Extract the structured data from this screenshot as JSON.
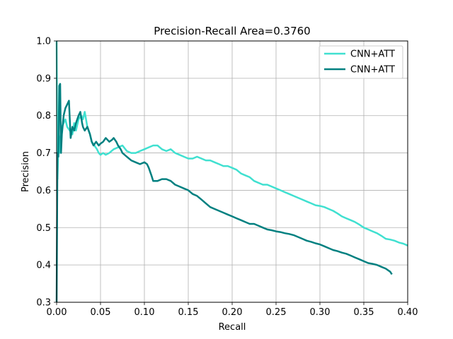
{
  "chart_data": {
    "type": "line",
    "title": "Precision-Recall Area=0.3760",
    "xlabel": "Recall",
    "ylabel": "Precision",
    "xlim": [
      0.0,
      0.4
    ],
    "ylim": [
      0.3,
      1.0
    ],
    "x_ticks": [
      "0.00",
      "0.05",
      "0.10",
      "0.15",
      "0.20",
      "0.25",
      "0.30",
      "0.35",
      "0.40"
    ],
    "y_ticks": [
      "0.3",
      "0.4",
      "0.5",
      "0.6",
      "0.7",
      "0.8",
      "0.9",
      "1.0"
    ],
    "grid": true,
    "legend_position": "top-right",
    "series": [
      {
        "name": "CNN+ATT",
        "color": "#40e0d0",
        "x": [
          0.0,
          0.001,
          0.002,
          0.003,
          0.004,
          0.006,
          0.008,
          0.01,
          0.012,
          0.015,
          0.018,
          0.02,
          0.022,
          0.025,
          0.028,
          0.03,
          0.032,
          0.035,
          0.038,
          0.04,
          0.043,
          0.046,
          0.048,
          0.05,
          0.053,
          0.056,
          0.06,
          0.065,
          0.07,
          0.075,
          0.08,
          0.085,
          0.09,
          0.095,
          0.1,
          0.105,
          0.11,
          0.115,
          0.12,
          0.125,
          0.13,
          0.135,
          0.14,
          0.145,
          0.15,
          0.155,
          0.16,
          0.165,
          0.17,
          0.175,
          0.18,
          0.185,
          0.19,
          0.195,
          0.2,
          0.205,
          0.21,
          0.215,
          0.22,
          0.225,
          0.23,
          0.235,
          0.24,
          0.245,
          0.25,
          0.255,
          0.26,
          0.265,
          0.27,
          0.275,
          0.28,
          0.285,
          0.29,
          0.295,
          0.3,
          0.305,
          0.31,
          0.315,
          0.32,
          0.325,
          0.33,
          0.335,
          0.34,
          0.345,
          0.35,
          0.355,
          0.36,
          0.365,
          0.37,
          0.375,
          0.38,
          0.385,
          0.39,
          0.395,
          0.4
        ],
        "y": [
          1.0,
          0.63,
          0.72,
          0.7,
          0.74,
          0.77,
          0.78,
          0.79,
          0.77,
          0.76,
          0.75,
          0.78,
          0.76,
          0.79,
          0.8,
          0.79,
          0.81,
          0.77,
          0.75,
          0.73,
          0.72,
          0.71,
          0.7,
          0.695,
          0.7,
          0.695,
          0.7,
          0.71,
          0.715,
          0.72,
          0.705,
          0.7,
          0.7,
          0.705,
          0.71,
          0.715,
          0.72,
          0.72,
          0.71,
          0.705,
          0.71,
          0.7,
          0.695,
          0.69,
          0.685,
          0.685,
          0.69,
          0.685,
          0.68,
          0.68,
          0.675,
          0.67,
          0.665,
          0.665,
          0.66,
          0.655,
          0.645,
          0.64,
          0.635,
          0.625,
          0.62,
          0.615,
          0.615,
          0.61,
          0.605,
          0.6,
          0.595,
          0.59,
          0.585,
          0.58,
          0.575,
          0.57,
          0.565,
          0.56,
          0.558,
          0.555,
          0.55,
          0.545,
          0.538,
          0.53,
          0.525,
          0.52,
          0.515,
          0.508,
          0.5,
          0.495,
          0.49,
          0.485,
          0.478,
          0.47,
          0.468,
          0.465,
          0.46,
          0.457,
          0.452
        ]
      },
      {
        "name": "CNN+ATT",
        "color": "#008080",
        "x": [
          0.0,
          0.001,
          0.002,
          0.003,
          0.004,
          0.005,
          0.006,
          0.008,
          0.01,
          0.012,
          0.014,
          0.016,
          0.018,
          0.02,
          0.022,
          0.025,
          0.027,
          0.029,
          0.03,
          0.032,
          0.035,
          0.038,
          0.04,
          0.042,
          0.045,
          0.048,
          0.05,
          0.053,
          0.056,
          0.06,
          0.063,
          0.065,
          0.068,
          0.07,
          0.073,
          0.075,
          0.08,
          0.085,
          0.09,
          0.095,
          0.1,
          0.103,
          0.105,
          0.108,
          0.11,
          0.115,
          0.12,
          0.125,
          0.13,
          0.135,
          0.14,
          0.145,
          0.15,
          0.155,
          0.16,
          0.165,
          0.17,
          0.175,
          0.18,
          0.185,
          0.19,
          0.195,
          0.2,
          0.205,
          0.21,
          0.215,
          0.22,
          0.225,
          0.23,
          0.235,
          0.24,
          0.245,
          0.25,
          0.255,
          0.26,
          0.265,
          0.27,
          0.275,
          0.28,
          0.285,
          0.29,
          0.295,
          0.3,
          0.305,
          0.31,
          0.315,
          0.32,
          0.325,
          0.33,
          0.335,
          0.34,
          0.345,
          0.35,
          0.355,
          0.36,
          0.365,
          0.37,
          0.375,
          0.38,
          0.382
        ],
        "y": [
          0.3,
          0.7,
          0.69,
          0.88,
          0.885,
          0.7,
          0.75,
          0.8,
          0.82,
          0.83,
          0.84,
          0.74,
          0.77,
          0.76,
          0.78,
          0.8,
          0.81,
          0.78,
          0.77,
          0.76,
          0.77,
          0.75,
          0.73,
          0.72,
          0.73,
          0.72,
          0.725,
          0.73,
          0.74,
          0.73,
          0.735,
          0.74,
          0.73,
          0.72,
          0.71,
          0.7,
          0.69,
          0.68,
          0.675,
          0.67,
          0.675,
          0.67,
          0.66,
          0.64,
          0.625,
          0.625,
          0.63,
          0.63,
          0.625,
          0.615,
          0.61,
          0.605,
          0.6,
          0.59,
          0.585,
          0.575,
          0.565,
          0.555,
          0.55,
          0.545,
          0.54,
          0.535,
          0.53,
          0.525,
          0.52,
          0.515,
          0.51,
          0.51,
          0.505,
          0.5,
          0.495,
          0.493,
          0.49,
          0.488,
          0.485,
          0.483,
          0.48,
          0.475,
          0.47,
          0.465,
          0.462,
          0.458,
          0.455,
          0.45,
          0.445,
          0.44,
          0.437,
          0.433,
          0.43,
          0.425,
          0.42,
          0.415,
          0.41,
          0.405,
          0.403,
          0.4,
          0.395,
          0.39,
          0.382,
          0.375
        ]
      }
    ]
  }
}
